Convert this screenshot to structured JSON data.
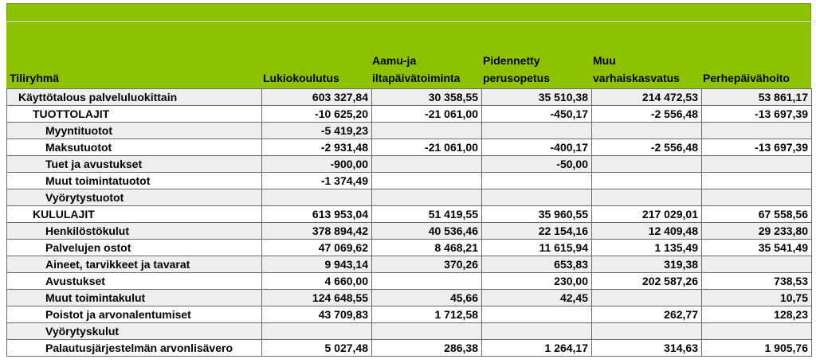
{
  "colors": {
    "header_green": "#8cc200",
    "row_shade": "#eeeeee",
    "grid": "#6a6a6a"
  },
  "header": {
    "col0": [
      "Tiliryhmä"
    ],
    "col1": [
      "Lukiokoulutus"
    ],
    "col2": [
      "Aamu-ja",
      "iltapäivätoiminta"
    ],
    "col3": [
      "Pidennetty",
      "perusopetus"
    ],
    "col4": [
      "Muu",
      "varhaiskasvatus"
    ],
    "col5": [
      "Perhepäivähoito"
    ]
  },
  "rows": [
    {
      "label": "Käyttötalous palveluluokittain",
      "values": [
        "603 327,84",
        "30 358,55",
        "35 510,38",
        "214 472,53",
        "53 861,17"
      ]
    },
    {
      "label": "TUOTTOLAJIT",
      "values": [
        "-10 625,20",
        "-21 061,00",
        "-450,17",
        "-2 556,48",
        "-13 697,39"
      ]
    },
    {
      "label": "Myyntituotot",
      "values": [
        "-5 419,23",
        "",
        "",
        "",
        ""
      ]
    },
    {
      "label": "Maksutuotot",
      "values": [
        "-2 931,48",
        "-21 061,00",
        "-400,17",
        "-2 556,48",
        "-13 697,39"
      ]
    },
    {
      "label": "Tuet ja avustukset",
      "values": [
        "-900,00",
        "",
        "-50,00",
        "",
        ""
      ]
    },
    {
      "label": "Muut toimintatuotot",
      "values": [
        "-1 374,49",
        "",
        "",
        "",
        ""
      ]
    },
    {
      "label": "Vyörytystuotot",
      "values": [
        "",
        "",
        "",
        "",
        ""
      ]
    },
    {
      "label": "KULULAJIT",
      "values": [
        "613 953,04",
        "51 419,55",
        "35 960,55",
        "217 029,01",
        "67 558,56"
      ]
    },
    {
      "label": "Henkilöstökulut",
      "values": [
        "378 894,42",
        "40 536,46",
        "22 154,16",
        "12 409,48",
        "29 233,80"
      ]
    },
    {
      "label": "Palvelujen ostot",
      "values": [
        "47 069,62",
        "8 468,21",
        "11 615,94",
        "1 135,49",
        "35 541,49"
      ]
    },
    {
      "label": "Aineet, tarvikkeet ja tavarat",
      "values": [
        "9 943,14",
        "370,26",
        "653,83",
        "319,38",
        ""
      ]
    },
    {
      "label": "Avustukset",
      "values": [
        "4 660,00",
        "",
        "230,00",
        "202 587,26",
        "738,53"
      ]
    },
    {
      "label": "Muut toimintakulut",
      "values": [
        "124 648,55",
        "45,66",
        "42,45",
        "",
        "10,75"
      ]
    },
    {
      "label": "Poistot ja arvonalentumiset",
      "values": [
        "43 709,83",
        "1 712,58",
        "",
        "262,77",
        "128,23"
      ]
    },
    {
      "label": "Vyörytyskulut",
      "values": [
        "",
        "",
        "",
        "",
        ""
      ]
    },
    {
      "label": "Palautusjärjestelmän arvonlisävero",
      "values": [
        "5 027,48",
        "286,38",
        "1 264,17",
        "314,63",
        "1 905,76"
      ]
    }
  ]
}
